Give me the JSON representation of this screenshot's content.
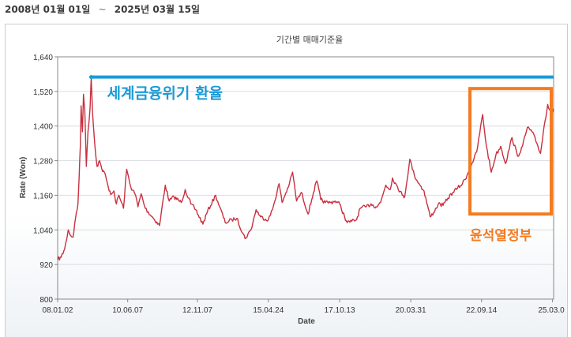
{
  "header": {
    "start_date": "2008년 01월 01일",
    "separator": "~",
    "end_date": "2025년 03월 15일"
  },
  "chart_data": {
    "type": "line",
    "title": "기간별 매매기준율",
    "xlabel": "Date",
    "ylabel": "Rate (Won)",
    "ylim": [
      800,
      1640
    ],
    "yticks": [
      800,
      920,
      1040,
      1160,
      1280,
      1400,
      1520,
      1640
    ],
    "x_tick_labels": [
      "08.01.02",
      "10.06.07",
      "12.11.07",
      "15.04.24",
      "17.10.13",
      "20.03.31",
      "22.09.14",
      "25.03.0"
    ],
    "x_tick_dates": [
      "2008-01-02",
      "2010-06-07",
      "2012-11-07",
      "2015-04-24",
      "2017-10-13",
      "2020-03-31",
      "2022-09-14",
      "2025-03-01"
    ],
    "xlim": [
      "2008-01-02",
      "2025-03-15"
    ],
    "grid": "horizontal",
    "line_color": "#c8303f",
    "series": [
      {
        "points": [
          [
            "2008-01-02",
            938
          ],
          [
            "2008-02-15",
            945
          ],
          [
            "2008-04-01",
            975
          ],
          [
            "2008-05-15",
            1040
          ],
          [
            "2008-06-15",
            1020
          ],
          [
            "2008-07-15",
            1015
          ],
          [
            "2008-08-15",
            1080
          ],
          [
            "2008-09-15",
            1130
          ],
          [
            "2008-10-01",
            1230
          ],
          [
            "2008-10-15",
            1330
          ],
          [
            "2008-10-25",
            1470
          ],
          [
            "2008-11-10",
            1380
          ],
          [
            "2008-11-24",
            1510
          ],
          [
            "2008-12-10",
            1460
          ],
          [
            "2008-12-30",
            1260
          ],
          [
            "2009-01-20",
            1380
          ],
          [
            "2009-02-15",
            1460
          ],
          [
            "2009-03-02",
            1570
          ],
          [
            "2009-03-20",
            1440
          ],
          [
            "2009-04-15",
            1340
          ],
          [
            "2009-05-15",
            1260
          ],
          [
            "2009-06-15",
            1280
          ],
          [
            "2009-07-15",
            1250
          ],
          [
            "2009-08-15",
            1240
          ],
          [
            "2009-09-15",
            1210
          ],
          [
            "2009-10-15",
            1175
          ],
          [
            "2009-11-15",
            1165
          ],
          [
            "2009-12-15",
            1175
          ],
          [
            "2010-01-15",
            1130
          ],
          [
            "2010-02-15",
            1160
          ],
          [
            "2010-04-15",
            1115
          ],
          [
            "2010-05-25",
            1250
          ],
          [
            "2010-07-15",
            1190
          ],
          [
            "2010-09-15",
            1160
          ],
          [
            "2010-10-15",
            1120
          ],
          [
            "2010-11-25",
            1165
          ],
          [
            "2011-01-15",
            1115
          ],
          [
            "2011-04-15",
            1085
          ],
          [
            "2011-07-15",
            1055
          ],
          [
            "2011-09-26",
            1195
          ],
          [
            "2011-11-15",
            1140
          ],
          [
            "2012-01-15",
            1155
          ],
          [
            "2012-04-15",
            1135
          ],
          [
            "2012-06-05",
            1180
          ],
          [
            "2012-08-15",
            1130
          ],
          [
            "2012-10-15",
            1110
          ],
          [
            "2013-01-15",
            1060
          ],
          [
            "2013-03-15",
            1105
          ],
          [
            "2013-06-25",
            1160
          ],
          [
            "2013-08-15",
            1120
          ],
          [
            "2013-10-25",
            1065
          ],
          [
            "2014-01-15",
            1075
          ],
          [
            "2014-03-20",
            1080
          ],
          [
            "2014-07-03",
            1010
          ],
          [
            "2014-09-15",
            1040
          ],
          [
            "2014-11-20",
            1110
          ],
          [
            "2015-01-15",
            1085
          ],
          [
            "2015-04-24",
            1075
          ],
          [
            "2015-06-15",
            1110
          ],
          [
            "2015-09-07",
            1200
          ],
          [
            "2015-10-15",
            1135
          ],
          [
            "2016-01-15",
            1200
          ],
          [
            "2016-02-25",
            1240
          ],
          [
            "2016-04-15",
            1140
          ],
          [
            "2016-06-15",
            1170
          ],
          [
            "2016-09-08",
            1095
          ],
          [
            "2016-11-15",
            1170
          ],
          [
            "2016-12-28",
            1210
          ],
          [
            "2017-02-15",
            1145
          ],
          [
            "2017-04-15",
            1135
          ],
          [
            "2017-06-15",
            1135
          ],
          [
            "2017-08-15",
            1140
          ],
          [
            "2017-10-13",
            1130
          ],
          [
            "2017-12-15",
            1085
          ],
          [
            "2018-01-15",
            1065
          ],
          [
            "2018-03-15",
            1070
          ],
          [
            "2018-05-15",
            1075
          ],
          [
            "2018-06-30",
            1115
          ],
          [
            "2018-09-15",
            1120
          ],
          [
            "2018-11-15",
            1130
          ],
          [
            "2019-01-15",
            1120
          ],
          [
            "2019-03-15",
            1135
          ],
          [
            "2019-05-20",
            1195
          ],
          [
            "2019-07-15",
            1180
          ],
          [
            "2019-08-13",
            1220
          ],
          [
            "2019-10-15",
            1190
          ],
          [
            "2019-12-15",
            1160
          ],
          [
            "2020-01-15",
            1155
          ],
          [
            "2020-03-19",
            1285
          ],
          [
            "2020-05-15",
            1230
          ],
          [
            "2020-07-15",
            1200
          ],
          [
            "2020-09-15",
            1175
          ],
          [
            "2020-12-03",
            1085
          ],
          [
            "2021-01-15",
            1100
          ],
          [
            "2021-03-15",
            1130
          ],
          [
            "2021-05-15",
            1125
          ],
          [
            "2021-07-15",
            1150
          ],
          [
            "2021-09-15",
            1170
          ],
          [
            "2021-11-15",
            1185
          ],
          [
            "2022-01-15",
            1200
          ],
          [
            "2022-03-15",
            1230
          ],
          [
            "2022-05-15",
            1270
          ],
          [
            "2022-07-15",
            1310
          ],
          [
            "2022-09-28",
            1440
          ],
          [
            "2022-11-15",
            1330
          ],
          [
            "2023-01-15",
            1240
          ],
          [
            "2023-03-15",
            1300
          ],
          [
            "2023-05-15",
            1330
          ],
          [
            "2023-07-15",
            1270
          ],
          [
            "2023-10-05",
            1360
          ],
          [
            "2023-12-15",
            1295
          ],
          [
            "2024-02-15",
            1330
          ],
          [
            "2024-04-16",
            1395
          ],
          [
            "2024-06-15",
            1380
          ],
          [
            "2024-08-15",
            1340
          ],
          [
            "2024-09-30",
            1305
          ],
          [
            "2024-11-15",
            1400
          ],
          [
            "2024-12-30",
            1475
          ],
          [
            "2025-02-15",
            1445
          ],
          [
            "2025-03-14",
            1460
          ]
        ]
      }
    ],
    "annotations": [
      {
        "text": "세계금융위기 환율",
        "color": "#1a9ad6",
        "type": "reference-line",
        "y": 1570,
        "x_start": "2009-03-02",
        "x_end": "2025-03-15"
      },
      {
        "text": "윤석열정부",
        "color": "#f47b20",
        "type": "box",
        "x_start": "2022-05-10",
        "x_end": "2025-03-15",
        "y_min": 1095,
        "y_max": 1530
      }
    ]
  }
}
